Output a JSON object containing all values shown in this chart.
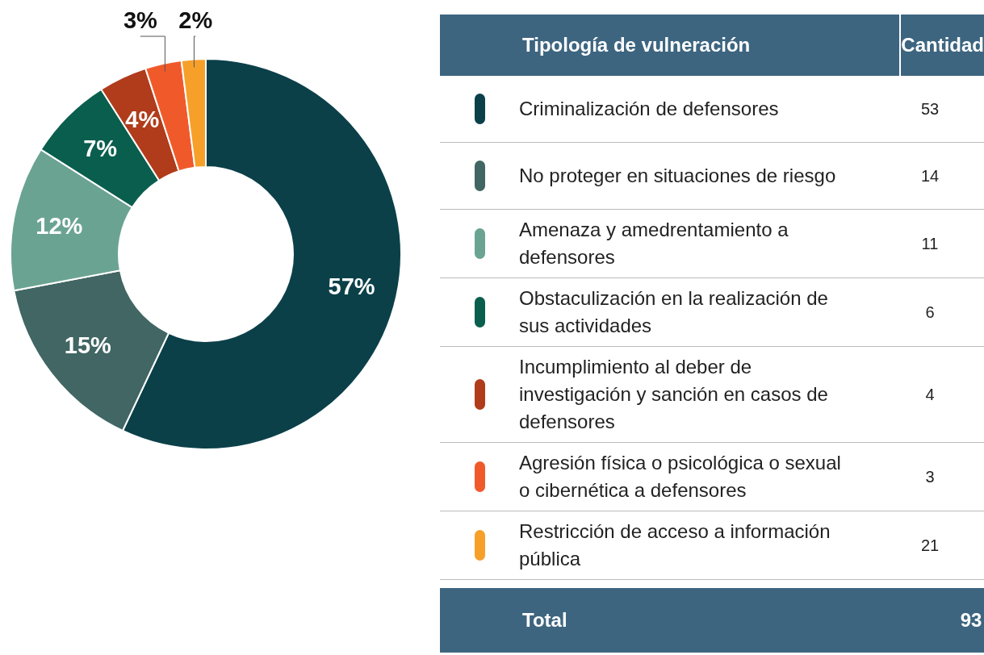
{
  "chart_data": [
    {
      "type": "donut",
      "categories": [
        "Criminalización de defensores",
        "No proteger en situaciones de riesgo",
        "Amenaza y amedrentamiento a defensores",
        "Obstaculización en la realización de sus actividades",
        "Incumplimiento al deber de investigación y sanción en casos de defensores",
        "Agresión física o psicológica o sexual o cibernética a defensores",
        "Restricción de acceso a información pública"
      ],
      "values": [
        57,
        15,
        12,
        7,
        4,
        3,
        2
      ],
      "value_labels": [
        "57%",
        "15%",
        "12%",
        "7%",
        "4%",
        "3%",
        "2%"
      ],
      "colors": [
        "#0b4049",
        "#416663",
        "#6ba393",
        "#0a5e4e",
        "#b03c1b",
        "#f05a2b",
        "#f6a02a"
      ]
    },
    {
      "type": "other",
      "xlabel": "Tipología de vulneración",
      "ylabel": "Cantidad",
      "values": [
        53,
        14,
        11,
        6,
        4,
        3,
        21
      ],
      "data_labels": true,
      "annotations": [
        "Total"
      ],
      "totals": [
        "93"
      ]
    }
  ]
}
